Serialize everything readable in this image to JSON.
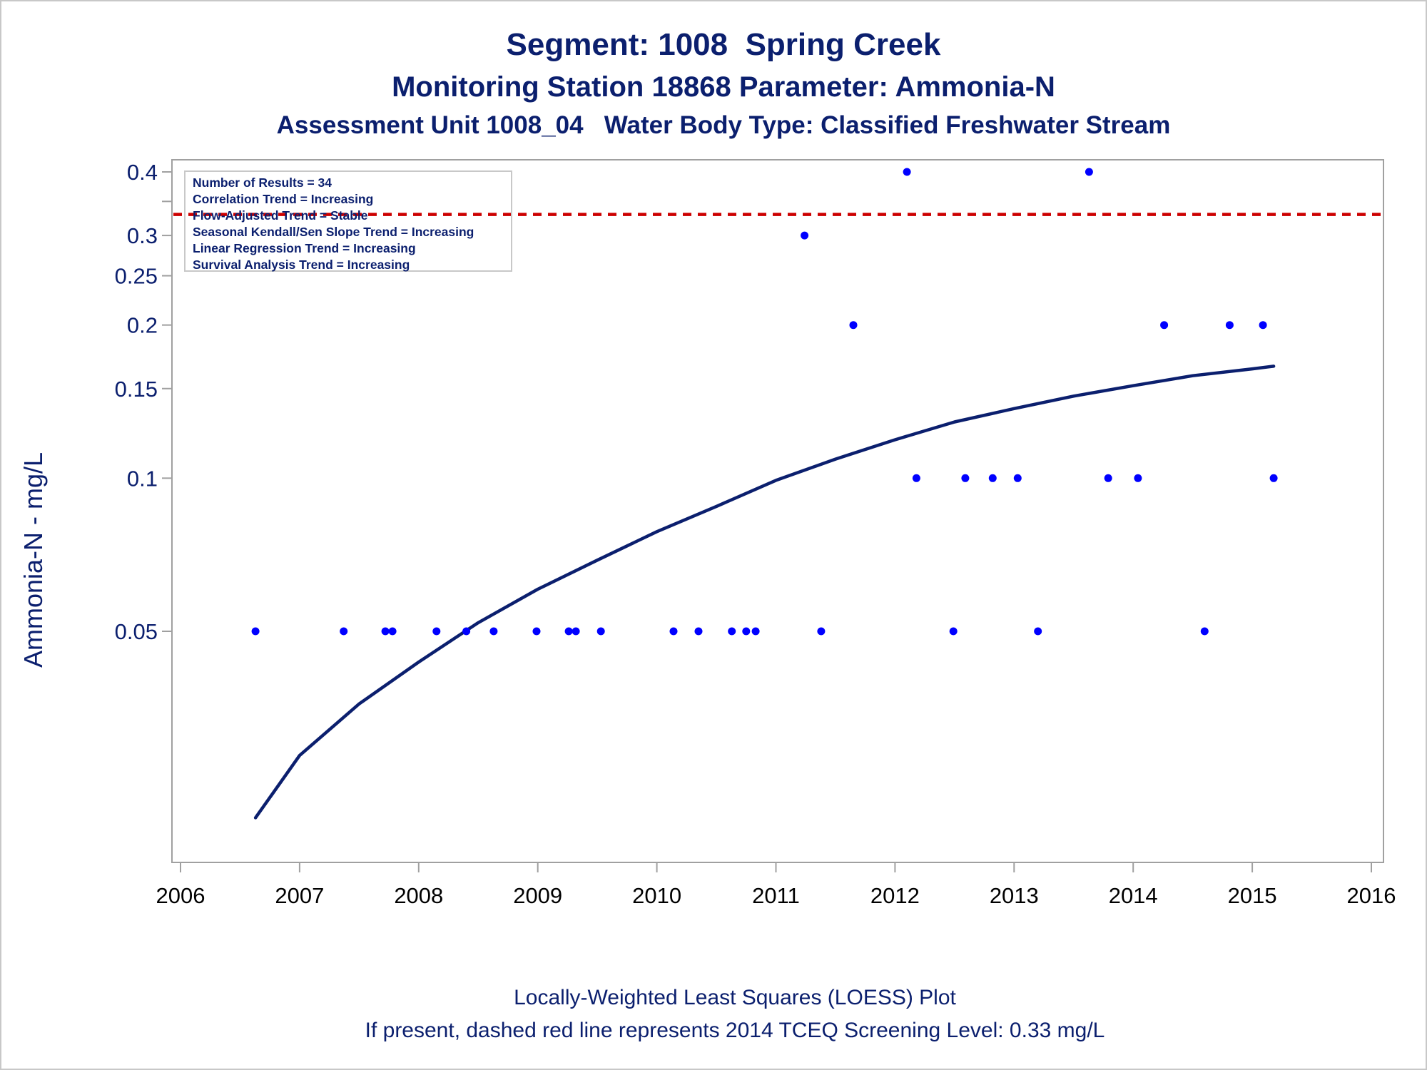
{
  "header": {
    "title": "Segment: 1008  Spring Creek",
    "subtitle": "Monitoring Station 18868 Parameter: Ammonia-N",
    "subtitle2": "Assessment Unit 1008_04   Water Body Type: Classified Freshwater Stream"
  },
  "footer": {
    "line1": "Locally-Weighted Least Squares (LOESS) Plot",
    "line2": "If present, dashed red line represents 2014 TCEQ Screening Level: 0.33 mg/L"
  },
  "legend": {
    "lines": [
      "Number of Results = 34",
      "Correlation Trend = Increasing",
      "Flow-Adjusted Trend = Stable",
      "Seasonal Kendall/Sen Slope Trend = Increasing",
      "Linear Regression Trend = Increasing",
      "Survival Analysis Trend = Increasing"
    ]
  },
  "colors": {
    "text": "#0b1f6e",
    "points": "#0000ff",
    "loess": "#0b1f6e",
    "screening_line": "#cc0000",
    "frame": "#a0a0a0"
  },
  "chart_data": {
    "type": "scatter",
    "title": "Segment: 1008  Spring Creek",
    "ylabel": "Ammonia-N - mg/L",
    "xlabel": "",
    "xlim": [
      2006,
      2016
    ],
    "ylim": [
      0.02,
      0.42
    ],
    "y_scale": "log",
    "x_ticks": [
      2006,
      2007,
      2008,
      2009,
      2010,
      2011,
      2012,
      2013,
      2014,
      2015,
      2016
    ],
    "y_ticks": [
      0.05,
      0.1,
      0.15,
      0.2,
      0.25,
      0.3,
      0.4
    ],
    "y_tick_labels": [
      "0.05",
      "0.1",
      "0.15",
      "0.2",
      "0.25",
      "0.3",
      "0.4"
    ],
    "y_minor_ticks": [
      0.35
    ],
    "grid": false,
    "legend_position": "top-left",
    "screening_level": 0.33,
    "points": [
      {
        "x": 2006.63,
        "y": 0.05
      },
      {
        "x": 2007.37,
        "y": 0.05
      },
      {
        "x": 2007.72,
        "y": 0.05
      },
      {
        "x": 2007.78,
        "y": 0.05
      },
      {
        "x": 2008.15,
        "y": 0.05
      },
      {
        "x": 2008.4,
        "y": 0.05
      },
      {
        "x": 2008.63,
        "y": 0.05
      },
      {
        "x": 2008.99,
        "y": 0.05
      },
      {
        "x": 2009.26,
        "y": 0.05
      },
      {
        "x": 2009.32,
        "y": 0.05
      },
      {
        "x": 2009.53,
        "y": 0.05
      },
      {
        "x": 2010.14,
        "y": 0.05
      },
      {
        "x": 2010.35,
        "y": 0.05
      },
      {
        "x": 2010.63,
        "y": 0.05
      },
      {
        "x": 2010.75,
        "y": 0.05
      },
      {
        "x": 2010.83,
        "y": 0.05
      },
      {
        "x": 2011.24,
        "y": 0.3
      },
      {
        "x": 2011.38,
        "y": 0.05
      },
      {
        "x": 2011.65,
        "y": 0.2
      },
      {
        "x": 2012.1,
        "y": 0.4
      },
      {
        "x": 2012.18,
        "y": 0.1
      },
      {
        "x": 2012.49,
        "y": 0.05
      },
      {
        "x": 2012.59,
        "y": 0.1
      },
      {
        "x": 2012.82,
        "y": 0.1
      },
      {
        "x": 2013.03,
        "y": 0.1
      },
      {
        "x": 2013.2,
        "y": 0.05
      },
      {
        "x": 2013.63,
        "y": 0.4
      },
      {
        "x": 2013.79,
        "y": 0.1
      },
      {
        "x": 2014.04,
        "y": 0.1
      },
      {
        "x": 2014.26,
        "y": 0.2
      },
      {
        "x": 2014.6,
        "y": 0.05
      },
      {
        "x": 2014.81,
        "y": 0.2
      },
      {
        "x": 2015.09,
        "y": 0.2
      },
      {
        "x": 2015.18,
        "y": 0.1
      }
    ],
    "loess_curve": [
      {
        "x": 2006.63,
        "y": 0.0215
      },
      {
        "x": 2007.0,
        "y": 0.0285
      },
      {
        "x": 2007.5,
        "y": 0.036
      },
      {
        "x": 2008.0,
        "y": 0.0435
      },
      {
        "x": 2008.5,
        "y": 0.052
      },
      {
        "x": 2009.0,
        "y": 0.0605
      },
      {
        "x": 2009.5,
        "y": 0.069
      },
      {
        "x": 2010.0,
        "y": 0.0785
      },
      {
        "x": 2010.5,
        "y": 0.088
      },
      {
        "x": 2011.0,
        "y": 0.099
      },
      {
        "x": 2011.5,
        "y": 0.109
      },
      {
        "x": 2012.0,
        "y": 0.119
      },
      {
        "x": 2012.5,
        "y": 0.129
      },
      {
        "x": 2013.0,
        "y": 0.137
      },
      {
        "x": 2013.5,
        "y": 0.145
      },
      {
        "x": 2014.0,
        "y": 0.152
      },
      {
        "x": 2014.5,
        "y": 0.159
      },
      {
        "x": 2015.0,
        "y": 0.164
      },
      {
        "x": 2015.18,
        "y": 0.166
      }
    ]
  }
}
